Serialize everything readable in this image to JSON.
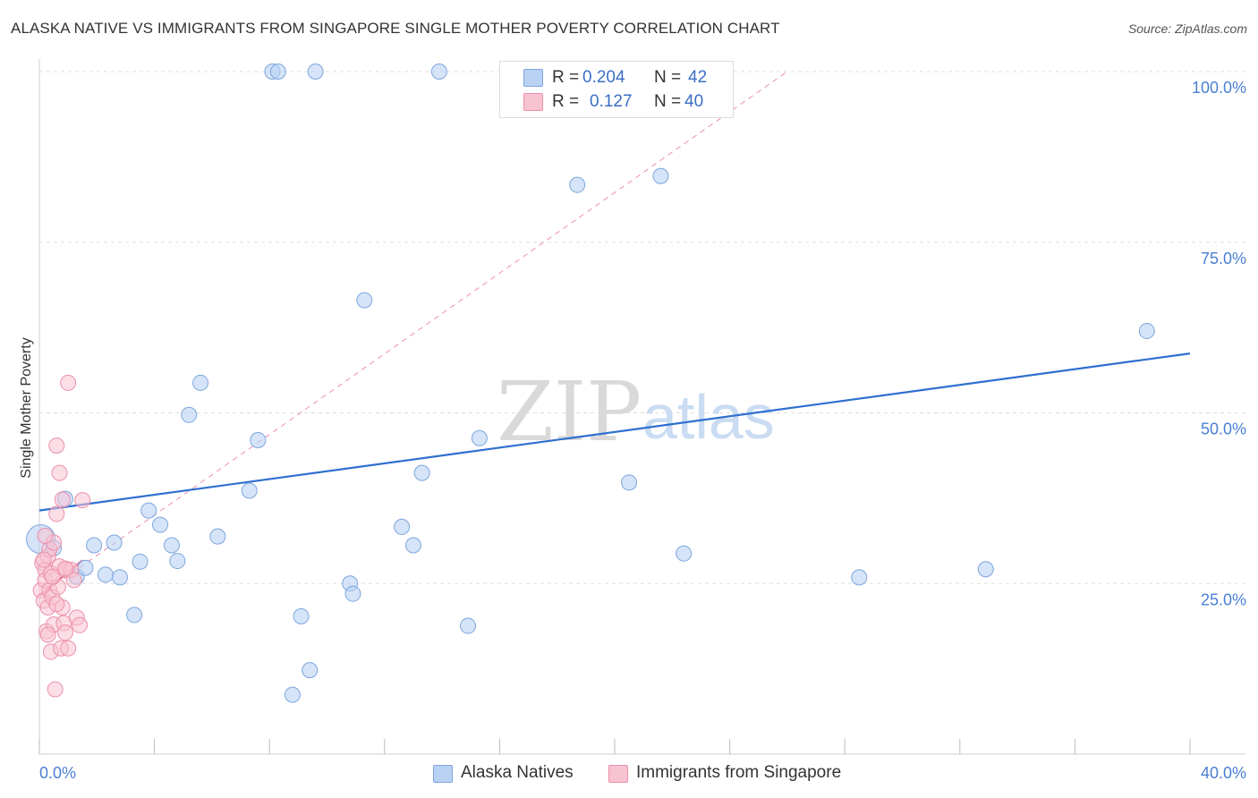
{
  "header": {
    "title": "ALASKA NATIVE VS IMMIGRANTS FROM SINGAPORE SINGLE MOTHER POVERTY CORRELATION CHART",
    "source": "Source: ZipAtlas.com"
  },
  "watermark": {
    "zip": "ZIP",
    "atlas": "atlas"
  },
  "legend": {
    "rows": [
      {
        "r_label": "R =",
        "r_value": "0.204",
        "n_label": "N =",
        "n_value": "42"
      },
      {
        "r_label": "R =",
        "r_value": "0.127",
        "n_label": "N =",
        "n_value": "40"
      }
    ]
  },
  "bottom_legend": {
    "items": [
      {
        "label": "Alaska Natives"
      },
      {
        "label": "Immigrants from Singapore"
      }
    ]
  },
  "colors": {
    "blue_fill": "#b9d2f3",
    "blue_stroke": "#7ea6de",
    "blue_line": "#2f6fd0",
    "pink_fill": "#f7c3d1",
    "pink_stroke": "#ec8fab",
    "pink_line": "#e3648b",
    "tick_label": "#4a7fd4",
    "grid": "#dddddd"
  },
  "chart_data": {
    "type": "scatter",
    "title": "ALASKA NATIVE VS IMMIGRANTS FROM SINGAPORE SINGLE MOTHER POVERTY CORRELATION CHART",
    "xlabel": "",
    "ylabel": "Single Mother Poverty",
    "xlim": [
      0,
      40
    ],
    "ylim": [
      0,
      100
    ],
    "x_unit": "%",
    "y_unit": "%",
    "x_tick_labels": [
      "0.0%",
      "40.0%"
    ],
    "y_tick_labels": [
      {
        "value": 25,
        "label": "25.0%"
      },
      {
        "value": 50,
        "label": "50.0%"
      },
      {
        "value": 75,
        "label": "75.0%"
      },
      {
        "value": 100,
        "label": "100.0%"
      }
    ],
    "grid": true,
    "legend_position": "top-center",
    "series": [
      {
        "name": "Alaska Natives",
        "color": "#b9d2f3",
        "r": 0.204,
        "n": 42,
        "trend": {
          "x": [
            0,
            40
          ],
          "y": [
            35.7,
            58.7
          ],
          "style": "solid"
        },
        "points": [
          [
            0.05,
            31.5
          ],
          [
            0.5,
            30.2
          ],
          [
            0.9,
            37.4
          ],
          [
            1.3,
            26.0
          ],
          [
            1.6,
            27.3
          ],
          [
            1.9,
            30.6
          ],
          [
            2.3,
            26.3
          ],
          [
            2.6,
            31.0
          ],
          [
            2.8,
            25.9
          ],
          [
            3.3,
            20.4
          ],
          [
            3.5,
            28.2
          ],
          [
            3.8,
            35.7
          ],
          [
            4.2,
            33.6
          ],
          [
            4.6,
            30.6
          ],
          [
            4.8,
            28.3
          ],
          [
            5.2,
            49.7
          ],
          [
            5.6,
            54.4
          ],
          [
            6.2,
            31.9
          ],
          [
            7.3,
            38.6
          ],
          [
            7.6,
            46.0
          ],
          [
            8.1,
            100.0
          ],
          [
            8.3,
            100.0
          ],
          [
            8.8,
            8.7
          ],
          [
            9.1,
            20.2
          ],
          [
            9.4,
            12.3
          ],
          [
            9.6,
            100.0
          ],
          [
            10.8,
            25.0
          ],
          [
            10.9,
            23.5
          ],
          [
            11.3,
            66.5
          ],
          [
            12.6,
            33.3
          ],
          [
            13.0,
            30.6
          ],
          [
            13.3,
            41.2
          ],
          [
            13.9,
            100.0
          ],
          [
            14.9,
            18.8
          ],
          [
            15.3,
            46.3
          ],
          [
            18.7,
            83.4
          ],
          [
            20.5,
            39.8
          ],
          [
            21.6,
            84.7
          ],
          [
            22.4,
            29.4
          ],
          [
            28.5,
            25.9
          ],
          [
            32.9,
            27.1
          ],
          [
            38.5,
            62.0
          ]
        ]
      },
      {
        "name": "Immigrants from Singapore",
        "color": "#f7c3d1",
        "r": 0.127,
        "n": 40,
        "trend": {
          "x": [
            0,
            1.5
          ],
          "y": [
            23.2,
            28.4
          ],
          "style": "solid",
          "extended_dashed_to": [
            26.0,
            100.0
          ]
        },
        "points": [
          [
            0.05,
            24.0
          ],
          [
            0.1,
            28.0
          ],
          [
            0.15,
            22.5
          ],
          [
            0.2,
            27.0
          ],
          [
            0.2,
            25.5
          ],
          [
            0.25,
            18.0
          ],
          [
            0.3,
            21.5
          ],
          [
            0.3,
            29.0
          ],
          [
            0.35,
            24.0
          ],
          [
            0.35,
            30.0
          ],
          [
            0.4,
            15.0
          ],
          [
            0.4,
            26.5
          ],
          [
            0.45,
            23.0
          ],
          [
            0.5,
            19.0
          ],
          [
            0.5,
            31.0
          ],
          [
            0.55,
            9.5
          ],
          [
            0.6,
            45.2
          ],
          [
            0.6,
            35.2
          ],
          [
            0.65,
            24.5
          ],
          [
            0.7,
            27.5
          ],
          [
            0.7,
            41.2
          ],
          [
            0.75,
            15.5
          ],
          [
            0.8,
            21.5
          ],
          [
            0.8,
            37.3
          ],
          [
            0.85,
            19.2
          ],
          [
            0.9,
            17.8
          ],
          [
            0.95,
            27.0
          ],
          [
            1.0,
            54.4
          ],
          [
            1.0,
            15.5
          ],
          [
            1.1,
            27.0
          ],
          [
            1.2,
            25.5
          ],
          [
            1.3,
            20.0
          ],
          [
            1.4,
            18.9
          ],
          [
            1.5,
            37.2
          ],
          [
            0.2,
            32.0
          ],
          [
            0.3,
            17.5
          ],
          [
            0.45,
            26.0
          ],
          [
            0.6,
            22.0
          ],
          [
            0.9,
            27.2
          ],
          [
            0.15,
            28.5
          ]
        ]
      }
    ]
  }
}
